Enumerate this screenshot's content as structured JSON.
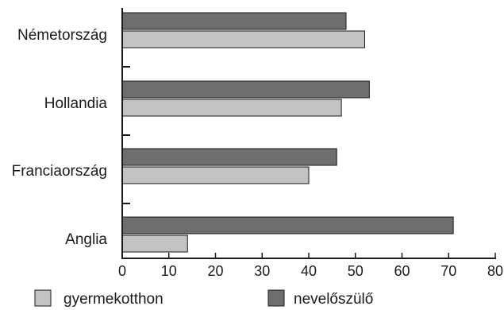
{
  "chart_data": {
    "type": "bar",
    "orientation": "horizontal",
    "categories": [
      "Németország",
      "Hollandia",
      "Franciaország",
      "Anglia"
    ],
    "series": [
      {
        "name": "nevelőszülő",
        "values": [
          48,
          53,
          46,
          71
        ],
        "color": "#6e6e6e"
      },
      {
        "name": "gyermekotthon",
        "values": [
          52,
          47,
          40,
          14
        ],
        "color": "#c2c2c2"
      }
    ],
    "xlim": [
      0,
      80
    ],
    "xticks": [
      0,
      10,
      20,
      30,
      40,
      50,
      60,
      70,
      80
    ],
    "legend": {
      "placement": "bottom",
      "order": [
        "gyermekotthon",
        "nevelőszülő"
      ]
    },
    "grid": false,
    "title": "",
    "xlabel": "",
    "ylabel": ""
  }
}
